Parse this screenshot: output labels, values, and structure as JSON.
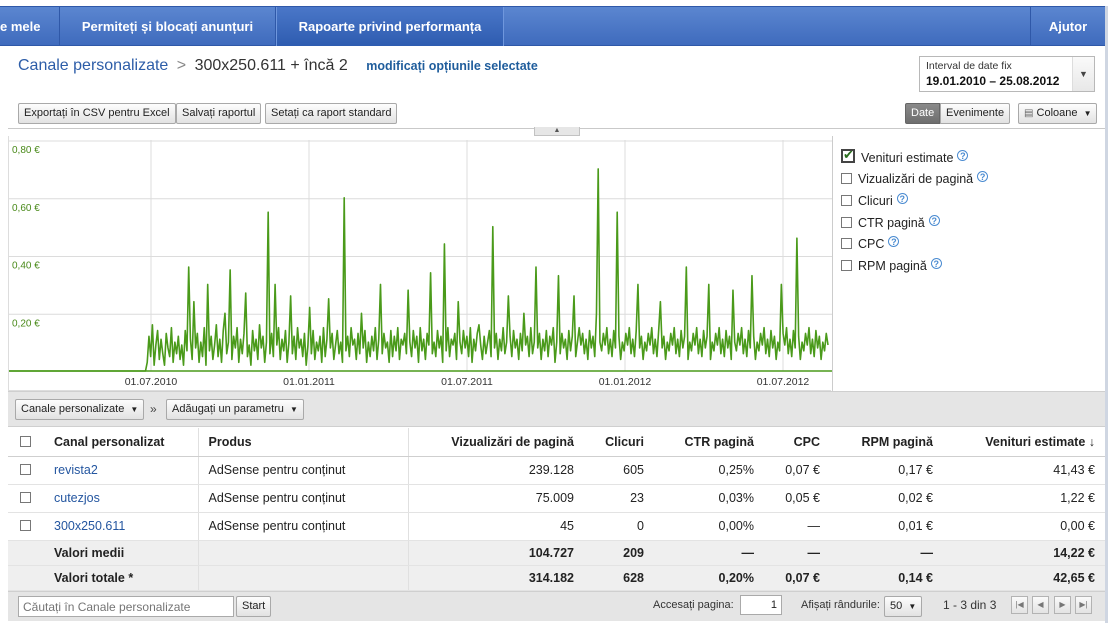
{
  "nav": {
    "tabs": [
      {
        "label": "e mele"
      },
      {
        "label": "Permiteți și blocați anunțuri"
      },
      {
        "label": "Rapoarte privind performanța"
      },
      {
        "label": "Ajutor"
      }
    ]
  },
  "breadcrumb": {
    "root": "Canale personalizate",
    "separator": ">",
    "current": "300x250.611 + încă 2",
    "modify_link": "modificați opțiunile selectate"
  },
  "date_range": {
    "label": "Interval de date fix",
    "value": "19.01.2010 – 25.08.2012"
  },
  "toolbar": {
    "export_csv": "Exportați în CSV pentru Excel",
    "save_report": "Salvați raportul",
    "set_default": "Setați ca raport standard",
    "view_date": "Date",
    "view_events": "Evenimente",
    "columns": "Coloane"
  },
  "chart_data": {
    "type": "line",
    "y_ticks": [
      "0,80 €",
      "0,60 €",
      "0,40 €",
      "0,20 €"
    ],
    "ylim": [
      0,
      0.8
    ],
    "x_ticks": [
      "01.07.2010",
      "01.01.2011",
      "01.07.2011",
      "01.01.2012",
      "01.07.2012"
    ],
    "series_color": "#4a9a1a",
    "series": [
      {
        "name": "Venituri estimate",
        "values": [
          0,
          0,
          0,
          0,
          0,
          0,
          0,
          0,
          0,
          0,
          0,
          0,
          0,
          0,
          0,
          0,
          0,
          0,
          0,
          0,
          0,
          0,
          0,
          0,
          0,
          0,
          0,
          0,
          0,
          0,
          0,
          0,
          0,
          0,
          0,
          0,
          0,
          0,
          0,
          0,
          0,
          0,
          0,
          0,
          0,
          0,
          0,
          0,
          0,
          0,
          0,
          0,
          0,
          0,
          0,
          0,
          0,
          0,
          0,
          0,
          0,
          0,
          0,
          0,
          0,
          0,
          0,
          0,
          0,
          0,
          0,
          0,
          0,
          0,
          0,
          0,
          0,
          0,
          0,
          0,
          0.03,
          0.12,
          0.05,
          0.16,
          0.02,
          0.09,
          0.14,
          0.04,
          0.11,
          0.06,
          0.02,
          0.13,
          0.08,
          0.05,
          0.15,
          0.03,
          0.1,
          0.06,
          0.12,
          0.04,
          0.09,
          0.02,
          0.14,
          0.07,
          0.36,
          0.11,
          0.04,
          0.24,
          0.08,
          0.13,
          0.03,
          0.1,
          0.05,
          0.15,
          0.02,
          0.3,
          0.07,
          0.12,
          0.04,
          0.09,
          0.16,
          0.05,
          0.11,
          0.03,
          0.14,
          0.2,
          0.06,
          0.1,
          0.35,
          0.04,
          0.12,
          0.08,
          0.15,
          0.03,
          0.11,
          0.06,
          0.13,
          0.27,
          0.05,
          0.09,
          0.02,
          0.14,
          0.07,
          0.11,
          0.04,
          0.16,
          0.08,
          0.12,
          0.03,
          0.1,
          0.55,
          0.06,
          0.13,
          0.05,
          0.3,
          0.09,
          0.15,
          0.04,
          0.11,
          0.07,
          0.14,
          0.03,
          0.1,
          0.26,
          0.06,
          0.12,
          0.04,
          0.15,
          0.08,
          0.11,
          0.05,
          0.13,
          0.02,
          0.09,
          0.22,
          0.06,
          0.14,
          0.04,
          0.1,
          0.07,
          0.12,
          0.03,
          0.15,
          0.05,
          0.11,
          0.25,
          0.08,
          0.13,
          0.04,
          0.09,
          0.14,
          0.06,
          0.1,
          0.03,
          0.6,
          0.07,
          0.12,
          0.05,
          0.15,
          0.09,
          0.11,
          0.04,
          0.13,
          0.06,
          0.2,
          0.08,
          0.14,
          0.03,
          0.1,
          0.05,
          0.12,
          0.07,
          0.15,
          0.04,
          0.11,
          0.3,
          0.06,
          0.13,
          0.08,
          0.1,
          0.03,
          0.14,
          0.05,
          0.12,
          0.07,
          0.15,
          0.04,
          0.11,
          0.09,
          0.13,
          0.06,
          0.28,
          0.1,
          0.05,
          0.14,
          0.08,
          0.12,
          0.03,
          0.15,
          0.07,
          0.11,
          0.04,
          0.13,
          0.09,
          0.34,
          0.06,
          0.1,
          0.05,
          0.14,
          0.08,
          0.12,
          0.03,
          0.44,
          0.07,
          0.15,
          0.05,
          0.11,
          0.09,
          0.13,
          0.04,
          0.24,
          0.1,
          0.06,
          0.14,
          0.08,
          0.12,
          0.05,
          0.15,
          0.03,
          0.11,
          0.07,
          0.13,
          0.16,
          0.09,
          0.04,
          0.12,
          0.06,
          0.1,
          0.14,
          0.05,
          0.5,
          0.08,
          0.13,
          0.04,
          0.11,
          0.07,
          0.15,
          0.06,
          0.1,
          0.26,
          0.12,
          0.05,
          0.14,
          0.08,
          0.11,
          0.04,
          0.13,
          0.07,
          0.2,
          0.09,
          0.12,
          0.05,
          0.15,
          0.06,
          0.1,
          0.36,
          0.08,
          0.13,
          0.04,
          0.11,
          0.07,
          0.14,
          0.05,
          0.12,
          0.09,
          0.15,
          0.03,
          0.1,
          0.33,
          0.06,
          0.13,
          0.08,
          0.11,
          0.04,
          0.14,
          0.07,
          0.12,
          0.26,
          0.05,
          0.1,
          0.15,
          0.09,
          0.13,
          0.06,
          0.11,
          0.04,
          0.14,
          0.08,
          0.12,
          0.05,
          0.2,
          0.7,
          0.1,
          0.07,
          0.13,
          0.09,
          0.15,
          0.06,
          0.11,
          0.05,
          0.14,
          0.08,
          0.55,
          0.12,
          0.04,
          0.1,
          0.07,
          0.13,
          0.09,
          0.15,
          0.06,
          0.11,
          0.05,
          0.14,
          0.3,
          0.08,
          0.12,
          0.04,
          0.1,
          0.07,
          0.13,
          0.09,
          0.15,
          0.06,
          0.11,
          0.05,
          0.14,
          0.24,
          0.08,
          0.12,
          0.04,
          0.1,
          0.07,
          0.13,
          0.09,
          0.15,
          0.06,
          0.11,
          0.05,
          0.14,
          0.08,
          0.12,
          0.36,
          0.04,
          0.1,
          0.07,
          0.13,
          0.09,
          0.15,
          0.06,
          0.11,
          0.05,
          0.14,
          0.08,
          0.12,
          0.3,
          0.04,
          0.1,
          0.07,
          0.13,
          0.09,
          0.15,
          0.06,
          0.11,
          0.05,
          0.14,
          0.08,
          0.12,
          0.04,
          0.28,
          0.1,
          0.07,
          0.13,
          0.09,
          0.15,
          0.06,
          0.11,
          0.05,
          0.14,
          0.08,
          0.33,
          0.12,
          0.04,
          0.1,
          0.07,
          0.13,
          0.09,
          0.15,
          0.06,
          0.11,
          0.05,
          0.14,
          0.08,
          0.12,
          0.04,
          0.1,
          0.07,
          0.3,
          0.13,
          0.09,
          0.15,
          0.06,
          0.11,
          0.05,
          0.14,
          0.08,
          0.46,
          0.12,
          0.04,
          0.1,
          0.07,
          0.13,
          0.09,
          0.15,
          0.06,
          0.11,
          0.05,
          0.14,
          0.08,
          0.12,
          0.04,
          0.1,
          0.07,
          0.13,
          0.09
        ]
      }
    ]
  },
  "legend": {
    "items": [
      {
        "label": "Venituri estimate",
        "checked": true
      },
      {
        "label": "Vizualizări de pagină",
        "checked": false
      },
      {
        "label": "Clicuri",
        "checked": false
      },
      {
        "label": "CTR pagină",
        "checked": false
      },
      {
        "label": "CPC",
        "checked": false
      },
      {
        "label": "RPM pagină",
        "checked": false
      }
    ]
  },
  "filters": {
    "dimension": "Canale personalizate",
    "separator": "»",
    "add_param": "Adăugați un parametru"
  },
  "table": {
    "headers": [
      "Canal personalizat",
      "Produs",
      "Vizualizări de pagină",
      "Clicuri",
      "CTR pagină",
      "CPC",
      "RPM pagină",
      "Venituri estimate ↓"
    ],
    "rows": [
      [
        "revista2",
        "AdSense pentru conținut",
        "239.128",
        "605",
        "0,25%",
        "0,07 €",
        "0,17 €",
        "41,43 €"
      ],
      [
        "cutezjos",
        "AdSense pentru conținut",
        "75.009",
        "23",
        "0,03%",
        "0,05 €",
        "0,02 €",
        "1,22 €"
      ],
      [
        "300x250.611",
        "AdSense pentru conținut",
        "45",
        "0",
        "0,00%",
        "—",
        "0,01 €",
        "0,00 €"
      ]
    ],
    "averages": [
      "Valori medii",
      "",
      "104.727",
      "209",
      "—",
      "—",
      "—",
      "14,22 €"
    ],
    "totals": [
      "Valori totale *",
      "",
      "314.182",
      "628",
      "0,20%",
      "0,07 €",
      "0,14 €",
      "42,65 €"
    ]
  },
  "footer": {
    "search_placeholder": "Căutați în Canale personalizate",
    "start": "Start",
    "goto_label": "Accesați pagina:",
    "goto_value": "1",
    "rows_label": "Afișați rândurile:",
    "rows_value": "50",
    "range": "1 - 3 din 3"
  }
}
